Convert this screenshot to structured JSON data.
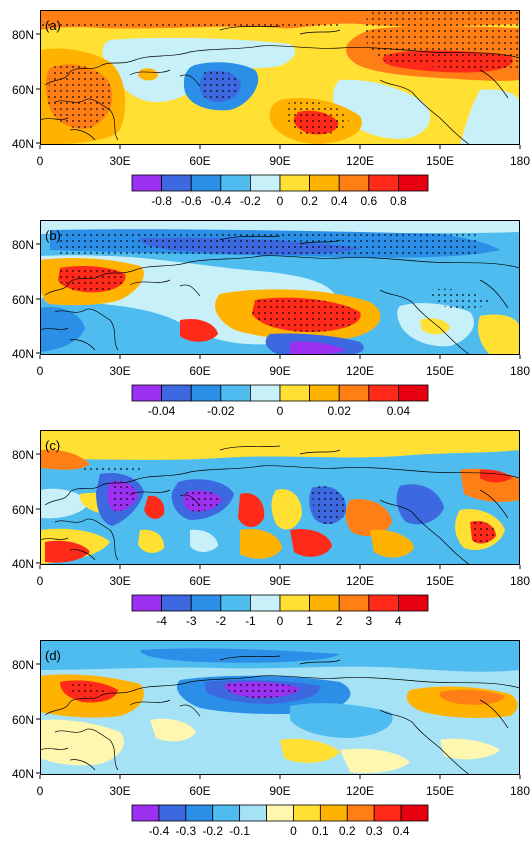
{
  "panels": [
    {
      "label": "(a)",
      "lat_ticks": [
        "80N",
        "60N",
        "40N"
      ],
      "lon_ticks": [
        "0",
        "30E",
        "60E",
        "90E",
        "120E",
        "150E",
        "180"
      ],
      "colorbar": {
        "tick_labels": [
          "-0.8",
          "-0.6",
          "-0.4",
          "-0.2",
          "0",
          "0.2",
          "0.4",
          "0.6",
          "0.8"
        ],
        "colors": [
          "#9b30f0",
          "#3c68e0",
          "#2b8fe8",
          "#4fbcf0",
          "#c8f0f8",
          "#ffe033",
          "#ffb300",
          "#ff7f16",
          "#ff2a1a",
          "#e60012"
        ]
      }
    },
    {
      "label": "(b)",
      "lat_ticks": [
        "80N",
        "60N",
        "40N"
      ],
      "lon_ticks": [
        "0",
        "30E",
        "60E",
        "90E",
        "120E",
        "150E",
        "180"
      ],
      "colorbar": {
        "tick_labels": [
          "-0.04",
          "-0.02",
          "0",
          "0.02",
          "0.04"
        ],
        "colors": [
          "#9b30f0",
          "#3c68e0",
          "#2b8fe8",
          "#4fbcf0",
          "#c8f0f8",
          "#ffe033",
          "#ffb300",
          "#ff7f16",
          "#ff2a1a",
          "#e60012"
        ]
      }
    },
    {
      "label": "(c)",
      "lat_ticks": [
        "80N",
        "60N",
        "40N"
      ],
      "lon_ticks": [
        "0",
        "30E",
        "60E",
        "90E",
        "120E",
        "150E",
        "180"
      ],
      "colorbar": {
        "tick_labels": [
          "-4",
          "-3",
          "-2",
          "-1",
          "0",
          "1",
          "2",
          "3",
          "4"
        ],
        "colors": [
          "#9b30f0",
          "#3c68e0",
          "#2b8fe8",
          "#4fbcf0",
          "#c8f0f8",
          "#ffe033",
          "#ffb300",
          "#ff7f16",
          "#ff2a1a",
          "#e60012"
        ]
      }
    },
    {
      "label": "(d)",
      "lat_ticks": [
        "80N",
        "60N",
        "40N"
      ],
      "lon_ticks": [
        "0",
        "30E",
        "60E",
        "90E",
        "120E",
        "150E",
        "180"
      ],
      "colorbar": {
        "tick_labels": [
          "-0.4",
          "-0.3",
          "-0.2",
          "-0.1",
          "0",
          "0.1",
          "0.2",
          "0.3",
          "0.4"
        ],
        "colors": [
          "#9b30f0",
          "#3c68e0",
          "#2b8fe8",
          "#4fbcf0",
          "#a6e2f5",
          "#fff6b0",
          "#ffe033",
          "#ffb300",
          "#ff7f16",
          "#ff2a1a",
          "#e60012"
        ]
      }
    }
  ]
}
